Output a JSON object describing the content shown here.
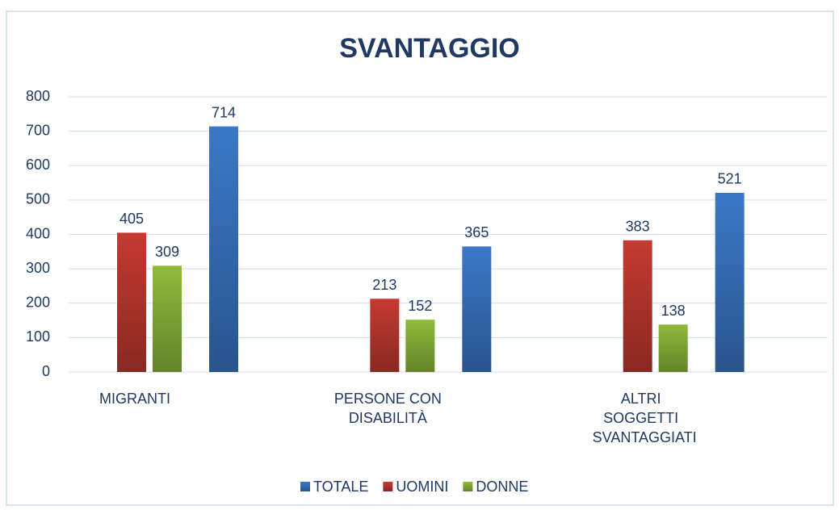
{
  "chart_data": {
    "type": "bar",
    "title": "SVANTAGGIO",
    "categories": [
      "MIGRANTI",
      "PERSONE CON DISABILITÀ",
      "ALTRI SOGGETTI SVANTAGGIATI"
    ],
    "series": [
      {
        "name": "TOTALE",
        "color": "#3b78c8",
        "values": [
          714,
          365,
          521
        ]
      },
      {
        "name": "UOMINI",
        "color": "#c43a31",
        "values": [
          405,
          213,
          383
        ]
      },
      {
        "name": "DONNE",
        "color": "#8fbb3c",
        "values": [
          309,
          152,
          138
        ]
      }
    ],
    "ylim": [
      0,
      800
    ],
    "yticks": [
      0,
      100,
      200,
      300,
      400,
      500,
      600,
      700,
      800
    ],
    "grid": true,
    "legend": "bottom"
  }
}
